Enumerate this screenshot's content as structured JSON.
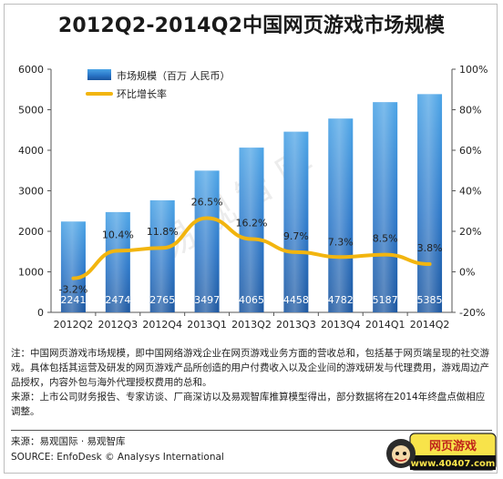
{
  "chart_data": {
    "type": "bar",
    "title": "2012Q2-2014Q2中国网页游戏市场规模",
    "categories": [
      "2012Q2",
      "2012Q3",
      "2012Q4",
      "2013Q1",
      "2013Q2",
      "2013Q3",
      "2013Q4",
      "2014Q1",
      "2014Q2"
    ],
    "series": [
      {
        "name": "市场规模（百万 人民币）",
        "kind": "bar",
        "axis": "left",
        "values": [
          2241,
          2474,
          2765,
          3497,
          4065,
          4458,
          4782,
          5187,
          5385
        ],
        "labels": [
          "2241",
          "2474",
          "2765",
          "3497",
          "4065",
          "4458",
          "4782",
          "5187",
          "5385"
        ]
      },
      {
        "name": "环比增长率",
        "kind": "line",
        "axis": "right",
        "values": [
          -3.2,
          10.4,
          11.8,
          26.5,
          16.2,
          9.7,
          7.3,
          8.5,
          3.8
        ],
        "labels": [
          "-3.2%",
          "10.4%",
          "11.8%",
          "26.5%",
          "16.2%",
          "9.7%",
          "7.3%",
          "8.5%",
          "3.8%"
        ]
      }
    ],
    "ylim": [
      0,
      6000
    ],
    "yticks": [
      "0",
      "1000",
      "2000",
      "3000",
      "4000",
      "5000",
      "6000"
    ],
    "y2lim": [
      -20,
      100
    ],
    "y2ticks": [
      "-20%",
      "0%",
      "20%",
      "40%",
      "60%",
      "80%",
      "100%"
    ],
    "legend_position": "top-left",
    "grid": false,
    "colors": {
      "bar_top": "#3f95dc",
      "bar_bottom": "#1b5aa8",
      "line": "#f2b50f"
    }
  },
  "watermark": "易观智库",
  "notes": [
    "注：中国网页游戏市场规模，即中国网络游戏企业在网页游戏业务方面的营收总和，包括基于网页端呈现的社交游戏。具体包括其运营及研发的网页游戏产品所创造的用户付费收入以及企业间的游戏研发与代理费用，游戏周边产品授权，内容外包与海外代理授权费用的总和。",
    "来源：上市公司财务报告、专家访谈、厂商深访以及易观智库推算模型得出，部分数据将在2014年终盘点做相应调整。"
  ],
  "source": {
    "cn": "来源：易观国际 · 易观智库",
    "en": "SOURCE: EnfoDesk © Analysys International"
  },
  "badge": {
    "text": "网页游戏",
    "url": "www.40407.com"
  }
}
